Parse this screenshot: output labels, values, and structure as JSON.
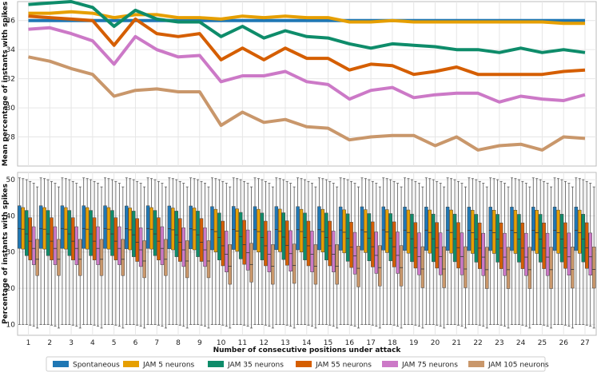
{
  "chart_data": [
    {
      "type": "line",
      "ylabel": "Mean percentage of instants with spikes",
      "ylim": [
        26,
        37.3
      ],
      "yticks": [
        28,
        30,
        32,
        34,
        36
      ],
      "x": [
        1,
        2,
        3,
        4,
        5,
        6,
        7,
        8,
        9,
        10,
        11,
        12,
        13,
        14,
        15,
        16,
        17,
        18,
        19,
        20,
        21,
        22,
        23,
        24,
        25,
        26,
        27
      ],
      "grid": true,
      "series": [
        {
          "name": "Spontaneous",
          "color": "#1f77b4",
          "values": [
            36.0,
            36.0,
            36.0,
            36.0,
            36.0,
            36.0,
            36.0,
            36.0,
            36.0,
            36.0,
            36.0,
            36.0,
            36.0,
            36.0,
            36.0,
            36.0,
            36.0,
            36.0,
            36.0,
            36.0,
            36.0,
            36.0,
            36.0,
            36.0,
            36.0,
            36.0,
            36.0
          ]
        },
        {
          "name": "JAM 5 neurons",
          "color": "#e69f00",
          "values": [
            36.5,
            36.5,
            36.6,
            36.5,
            36.2,
            36.4,
            36.4,
            36.2,
            36.2,
            36.1,
            36.3,
            36.2,
            36.3,
            36.2,
            36.2,
            35.9,
            35.9,
            36.0,
            35.9,
            35.9,
            35.9,
            35.9,
            35.9,
            35.9,
            35.9,
            35.8,
            35.8
          ]
        },
        {
          "name": "JAM 35 neurons",
          "color": "#0e8c6a",
          "values": [
            37.1,
            37.2,
            37.3,
            36.9,
            35.6,
            36.7,
            36.1,
            35.9,
            35.9,
            34.9,
            35.6,
            34.8,
            35.3,
            34.9,
            34.8,
            34.4,
            34.1,
            34.4,
            34.3,
            34.2,
            34.0,
            34.0,
            33.8,
            34.1,
            33.8,
            34.0,
            33.8
          ]
        },
        {
          "name": "JAM 55 neurons",
          "color": "#d55e00",
          "values": [
            36.3,
            36.2,
            36.1,
            36.0,
            34.3,
            36.1,
            35.1,
            34.9,
            35.1,
            33.3,
            34.1,
            33.3,
            34.1,
            33.4,
            33.4,
            32.6,
            33.0,
            32.9,
            32.3,
            32.5,
            32.8,
            32.3,
            32.3,
            32.3,
            32.3,
            32.5,
            32.6
          ]
        },
        {
          "name": "JAM 75 neurons",
          "color": "#cc79c7",
          "values": [
            35.4,
            35.5,
            35.1,
            34.6,
            33.0,
            34.9,
            34.0,
            33.5,
            33.6,
            31.8,
            32.2,
            32.2,
            32.5,
            31.8,
            31.6,
            30.6,
            31.2,
            31.4,
            30.7,
            30.9,
            31.0,
            31.0,
            30.4,
            30.8,
            30.6,
            30.5,
            30.9
          ]
        },
        {
          "name": "JAM 105 neurons",
          "color": "#c9976b",
          "values": [
            33.5,
            33.2,
            32.7,
            32.3,
            30.8,
            31.2,
            31.3,
            31.1,
            31.1,
            28.8,
            29.7,
            29.0,
            29.2,
            28.7,
            28.6,
            27.8,
            28.0,
            28.1,
            28.1,
            27.4,
            28.0,
            27.1,
            27.4,
            27.5,
            27.1,
            28.0,
            27.9
          ]
        }
      ]
    },
    {
      "type": "box",
      "ylabel": "Percentage of instants with spikes",
      "xlabel": "Number of consecutive positions under attack",
      "ylim": [
        7,
        52
      ],
      "yticks": [
        10,
        20,
        30,
        40,
        50
      ],
      "categories": [
        "1",
        "2",
        "3",
        "4",
        "5",
        "6",
        "7",
        "8",
        "9",
        "10",
        "11",
        "12",
        "13",
        "14",
        "15",
        "16",
        "17",
        "18",
        "19",
        "20",
        "21",
        "22",
        "23",
        "24",
        "25",
        "26",
        "27"
      ],
      "series_order": [
        "Spontaneous",
        "JAM 5 neurons",
        "JAM 35 neurons",
        "JAM 55 neurons",
        "JAM 75 neurons",
        "JAM 105 neurons"
      ],
      "box_stats": {
        "Spontaneous": {
          "whislo": 10.0,
          "q1": 31.0,
          "med": 36.5,
          "q3": 42.8,
          "whishi": 50.5
        },
        "JAM 5 neurons": {
          "whislo": 10.0,
          "q1": 30.8,
          "med": 36.3,
          "q3": 42.3,
          "whishi": 50.3
        },
        "JAM 35 neurons": {
          "whislo": 10.0,
          "q1": 29.0,
          "med": 35.0,
          "q3": 41.5,
          "whishi": 50.0
        },
        "JAM 55 neurons": {
          "whislo": 9.8,
          "q1": 27.8,
          "med": 33.0,
          "q3": 39.5,
          "whishi": 49.5
        },
        "JAM 75 neurons": {
          "whislo": 9.5,
          "q1": 26.5,
          "med": 31.0,
          "q3": 37.0,
          "whishi": 49.0
        },
        "JAM 105 neurons": {
          "whislo": 9.0,
          "q1": 23.5,
          "med": 28.0,
          "q3": 33.5,
          "whishi": 48.0
        }
      },
      "q1_trend": [
        0,
        0,
        0,
        0,
        0,
        -0.5,
        0,
        -0.5,
        -0.5,
        -2,
        -1.5,
        -2,
        -1.8,
        -2,
        -2,
        -2.6,
        -2.4,
        -2.4,
        -2.8,
        -2.8,
        -2.8,
        -3,
        -3,
        -3,
        -3,
        -2.9,
        -2.9
      ]
    }
  ],
  "legend": [
    {
      "label": "Spontaneous",
      "color": "#1f77b4"
    },
    {
      "label": "JAM 5 neurons",
      "color": "#e69f00"
    },
    {
      "label": "JAM 35 neurons",
      "color": "#0e8c6a"
    },
    {
      "label": "JAM 55 neurons",
      "color": "#d55e00"
    },
    {
      "label": "JAM 75 neurons",
      "color": "#cc79c7"
    },
    {
      "label": "JAM 105 neurons",
      "color": "#c9976b"
    }
  ]
}
